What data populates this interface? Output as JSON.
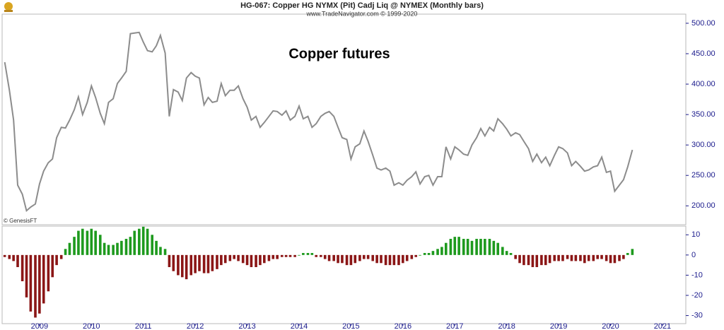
{
  "chart_data": [
    {
      "type": "line",
      "title": "HG-067:  Copper HG NYMX (Pit) Cadj Liq @ NYMEX  (Monthly bars)",
      "subtitle": "www.TradeNavigator.com © 1999-2020",
      "annotation": "Copper futures",
      "credit": "© GenesisFT",
      "color": "#8c8c8c",
      "xlim": [
        2008.28,
        2021.45
      ],
      "ylim": [
        169,
        515
      ],
      "yticks": [
        {
          "value": 200,
          "label": "200.00"
        },
        {
          "value": 250,
          "label": "250.00"
        },
        {
          "value": 300,
          "label": "300.00"
        },
        {
          "value": 350,
          "label": "350.00"
        },
        {
          "value": 400,
          "label": "400.00"
        },
        {
          "value": 450,
          "label": "450.00"
        },
        {
          "value": 500,
          "label": "500.00"
        }
      ],
      "x": [
        2008.33,
        2008.42,
        2008.5,
        2008.58,
        2008.67,
        2008.75,
        2008.83,
        2008.92,
        2009,
        2009.08,
        2009.17,
        2009.25,
        2009.33,
        2009.42,
        2009.5,
        2009.58,
        2009.67,
        2009.75,
        2009.83,
        2009.92,
        2010,
        2010.08,
        2010.17,
        2010.25,
        2010.33,
        2010.42,
        2010.5,
        2010.58,
        2010.67,
        2010.75,
        2010.83,
        2010.92,
        2011,
        2011.08,
        2011.17,
        2011.25,
        2011.33,
        2011.42,
        2011.5,
        2011.58,
        2011.67,
        2011.75,
        2011.83,
        2011.92,
        2012,
        2012.08,
        2012.17,
        2012.25,
        2012.33,
        2012.42,
        2012.5,
        2012.58,
        2012.67,
        2012.75,
        2012.83,
        2012.92,
        2013,
        2013.08,
        2013.17,
        2013.25,
        2013.33,
        2013.42,
        2013.5,
        2013.58,
        2013.67,
        2013.75,
        2013.83,
        2013.92,
        2014,
        2014.08,
        2014.17,
        2014.25,
        2014.33,
        2014.42,
        2014.5,
        2014.58,
        2014.67,
        2014.75,
        2014.83,
        2014.92,
        2015,
        2015.08,
        2015.17,
        2015.25,
        2015.33,
        2015.42,
        2015.5,
        2015.58,
        2015.67,
        2015.75,
        2015.83,
        2015.92,
        2016,
        2016.08,
        2016.17,
        2016.25,
        2016.33,
        2016.42,
        2016.5,
        2016.58,
        2016.67,
        2016.75,
        2016.83,
        2016.92,
        2017,
        2017.08,
        2017.17,
        2017.25,
        2017.33,
        2017.42,
        2017.5,
        2017.58,
        2017.67,
        2017.75,
        2017.83,
        2017.92,
        2018,
        2018.08,
        2018.17,
        2018.25,
        2018.33,
        2018.42,
        2018.5,
        2018.58,
        2018.67,
        2018.75,
        2018.83,
        2018.92,
        2019,
        2019.08,
        2019.17,
        2019.25,
        2019.33,
        2019.42,
        2019.5,
        2019.58,
        2019.67,
        2019.75,
        2019.83,
        2019.92,
        2020,
        2020.08,
        2020.17,
        2020.25,
        2020.33,
        2020.42
      ],
      "values": [
        436,
        390,
        341,
        234,
        219,
        192,
        198,
        203,
        236,
        257,
        271,
        277,
        312,
        329,
        328,
        341,
        358,
        379,
        350,
        370,
        397,
        378,
        352,
        335,
        370,
        376,
        401,
        410,
        421,
        483,
        484,
        485,
        469,
        455,
        453,
        463,
        480,
        451,
        347,
        391,
        387,
        373,
        410,
        419,
        413,
        410,
        366,
        378,
        370,
        372,
        401,
        381,
        390,
        390,
        397,
        376,
        362,
        341,
        347,
        329,
        337,
        347,
        356,
        355,
        349,
        356,
        341,
        347,
        364,
        343,
        347,
        329,
        335,
        347,
        352,
        355,
        347,
        329,
        312,
        309,
        277,
        297,
        302,
        323,
        306,
        283,
        262,
        259,
        262,
        257,
        234,
        238,
        234,
        242,
        248,
        256,
        236,
        248,
        250,
        234,
        248,
        248,
        297,
        277,
        297,
        292,
        285,
        283,
        300,
        312,
        327,
        315,
        329,
        323,
        343,
        335,
        326,
        315,
        320,
        317,
        306,
        294,
        273,
        285,
        271,
        280,
        266,
        283,
        297,
        294,
        287,
        266,
        273,
        265,
        257,
        259,
        264,
        266,
        280,
        255,
        257,
        224,
        234,
        243,
        264,
        292
      ]
    },
    {
      "type": "histogram-bars",
      "colors": {
        "positive": "#1e9a1e",
        "negative": "#8b1616"
      },
      "xlim": [
        2008.28,
        2021.45
      ],
      "xticks": [
        2009,
        2010,
        2011,
        2012,
        2013,
        2014,
        2015,
        2016,
        2017,
        2018,
        2019,
        2020,
        2021
      ],
      "ylim": [
        -34,
        14.3
      ],
      "yticks": [
        -30,
        -20,
        -10,
        0,
        10
      ],
      "x": [
        2008.33,
        2008.42,
        2008.5,
        2008.58,
        2008.67,
        2008.75,
        2008.83,
        2008.92,
        2009,
        2009.08,
        2009.17,
        2009.25,
        2009.33,
        2009.42,
        2009.5,
        2009.58,
        2009.67,
        2009.75,
        2009.83,
        2009.92,
        2010,
        2010.08,
        2010.17,
        2010.25,
        2010.33,
        2010.42,
        2010.5,
        2010.58,
        2010.67,
        2010.75,
        2010.83,
        2010.92,
        2011,
        2011.08,
        2011.17,
        2011.25,
        2011.33,
        2011.42,
        2011.5,
        2011.58,
        2011.67,
        2011.75,
        2011.83,
        2011.92,
        2012,
        2012.08,
        2012.17,
        2012.25,
        2012.33,
        2012.42,
        2012.5,
        2012.58,
        2012.67,
        2012.75,
        2012.83,
        2012.92,
        2013,
        2013.08,
        2013.17,
        2013.25,
        2013.33,
        2013.42,
        2013.5,
        2013.58,
        2013.67,
        2013.75,
        2013.83,
        2013.92,
        2014,
        2014.08,
        2014.17,
        2014.25,
        2014.33,
        2014.42,
        2014.5,
        2014.58,
        2014.67,
        2014.75,
        2014.83,
        2014.92,
        2015,
        2015.08,
        2015.17,
        2015.25,
        2015.33,
        2015.42,
        2015.5,
        2015.58,
        2015.67,
        2015.75,
        2015.83,
        2015.92,
        2016,
        2016.08,
        2016.17,
        2016.25,
        2016.33,
        2016.42,
        2016.5,
        2016.58,
        2016.67,
        2016.75,
        2016.83,
        2016.92,
        2017,
        2017.08,
        2017.17,
        2017.25,
        2017.33,
        2017.42,
        2017.5,
        2017.58,
        2017.67,
        2017.75,
        2017.83,
        2017.92,
        2018,
        2018.08,
        2018.17,
        2018.25,
        2018.33,
        2018.42,
        2018.5,
        2018.58,
        2018.67,
        2018.75,
        2018.83,
        2018.92,
        2019,
        2019.08,
        2019.17,
        2019.25,
        2019.33,
        2019.42,
        2019.5,
        2019.58,
        2019.67,
        2019.75,
        2019.83,
        2019.92,
        2020,
        2020.08,
        2020.17,
        2020.25,
        2020.33,
        2020.42
      ],
      "values": [
        -1,
        -2,
        -3,
        -6,
        -13,
        -21,
        -28,
        -31,
        -29,
        -24,
        -18,
        -11,
        -5,
        -2,
        3,
        6,
        9,
        12,
        13,
        12,
        13,
        12,
        10,
        6,
        5,
        5,
        6,
        7,
        8,
        9,
        12,
        13,
        14,
        13,
        10,
        7,
        4,
        3,
        -6,
        -8,
        -10,
        -11,
        -12,
        -10,
        -9,
        -8,
        -9,
        -9,
        -8,
        -7,
        -5,
        -4,
        -3,
        -2,
        -3,
        -4,
        -5,
        -6,
        -6,
        -5,
        -4,
        -3,
        -2,
        -2,
        -1,
        -1,
        -1,
        -1,
        0,
        1,
        1,
        1,
        -1,
        -1,
        -2,
        -3,
        -3,
        -4,
        -4,
        -5,
        -5,
        -4,
        -3,
        -2,
        -2,
        -3,
        -4,
        -4,
        -5,
        -5,
        -5,
        -5,
        -4,
        -3,
        -2,
        -1,
        0,
        1,
        1,
        2,
        3,
        4,
        6,
        8,
        9,
        9,
        8,
        8,
        7,
        8,
        8,
        8,
        8,
        7,
        6,
        4,
        2,
        1,
        -2,
        -4,
        -5,
        -5,
        -6,
        -6,
        -5,
        -5,
        -4,
        -3,
        -3,
        -3,
        -2,
        -3,
        -3,
        -3,
        -4,
        -3,
        -3,
        -2,
        -2,
        -3,
        -4,
        -4,
        -3,
        -2,
        1,
        3
      ]
    }
  ]
}
